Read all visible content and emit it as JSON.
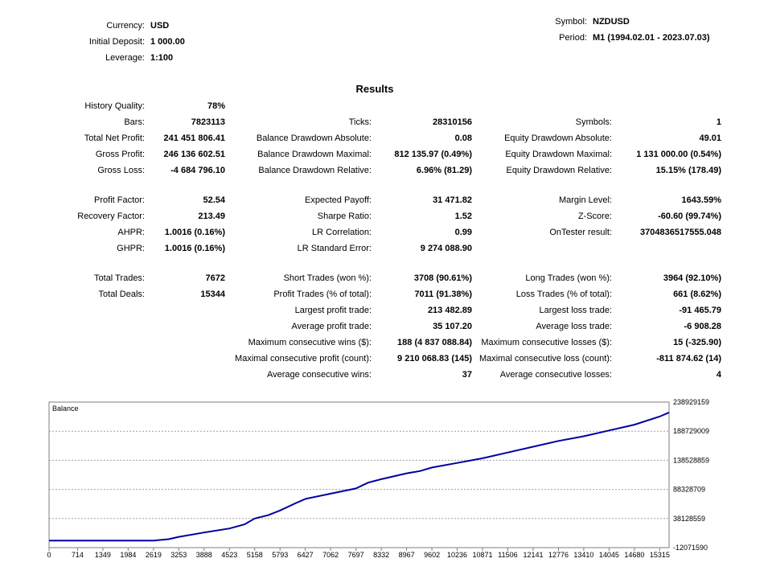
{
  "header": {
    "currency_label": "Currency:",
    "currency": "USD",
    "deposit_label": "Initial Deposit:",
    "deposit": "1 000.00",
    "leverage_label": "Leverage:",
    "leverage": "1:100",
    "symbol_label": "Symbol:",
    "symbol": "NZDUSD",
    "period_label": "Period:",
    "period": "M1 (1994.02.01 - 2023.07.03)"
  },
  "results_title": "Results",
  "col1": [
    {
      "label": "History Quality:",
      "value": "78%"
    },
    {
      "label": "Bars:",
      "value": "7823113"
    },
    {
      "label": "Total Net Profit:",
      "value": "241 451 806.41"
    },
    {
      "label": "Gross Profit:",
      "value": "246 136 602.51"
    },
    {
      "label": "Gross Loss:",
      "value": "-4 684 796.10"
    },
    {
      "label": "Profit Factor:",
      "value": "52.54"
    },
    {
      "label": "Recovery Factor:",
      "value": "213.49"
    },
    {
      "label": "AHPR:",
      "value": "1.0016 (0.16%)"
    },
    {
      "label": "GHPR:",
      "value": "1.0016 (0.16%)"
    },
    {
      "label": "Total Trades:",
      "value": "7672"
    },
    {
      "label": "Total Deals:",
      "value": "15344"
    }
  ],
  "col2": [
    {
      "label": "Ticks:",
      "value": "28310156"
    },
    {
      "label": "Balance Drawdown Absolute:",
      "value": "0.08"
    },
    {
      "label": "Balance Drawdown Maximal:",
      "value": "812 135.97 (0.49%)"
    },
    {
      "label": "Balance Drawdown Relative:",
      "value": "6.96% (81.29)"
    },
    {
      "label": "Expected Payoff:",
      "value": "31 471.82"
    },
    {
      "label": "Sharpe Ratio:",
      "value": "1.52"
    },
    {
      "label": "LR Correlation:",
      "value": "0.99"
    },
    {
      "label": "LR Standard Error:",
      "value": "9 274 088.90"
    },
    {
      "label": "Short Trades (won %):",
      "value": "3708 (90.61%)"
    },
    {
      "label": "Profit Trades (% of total):",
      "value": "7011 (91.38%)"
    },
    {
      "label": "Largest profit trade:",
      "value": "213 482.89"
    },
    {
      "label": "Average profit trade:",
      "value": "35 107.20"
    },
    {
      "label": "Maximum consecutive wins ($):",
      "value": "188 (4 837 088.84)"
    },
    {
      "label": "Maximal consecutive profit (count):",
      "value": "9 210 068.83 (145)"
    },
    {
      "label": "Average consecutive wins:",
      "value": "37"
    }
  ],
  "col3": [
    {
      "label": "Symbols:",
      "value": "1"
    },
    {
      "label": "Equity Drawdown Absolute:",
      "value": "49.01"
    },
    {
      "label": "Equity Drawdown Maximal:",
      "value": "1 131 000.00 (0.54%)"
    },
    {
      "label": "Equity Drawdown Relative:",
      "value": "15.15% (178.49)"
    },
    {
      "label": "Margin Level:",
      "value": "1643.59%"
    },
    {
      "label": "Z-Score:",
      "value": "-60.60 (99.74%)"
    },
    {
      "label": "OnTester result:",
      "value": "3704836517555.048"
    },
    {
      "label": "Long Trades (won %):",
      "value": "3964 (92.10%)"
    },
    {
      "label": "Loss Trades (% of total):",
      "value": "661 (8.62%)"
    },
    {
      "label": "Largest loss trade:",
      "value": "-91 465.79"
    },
    {
      "label": "Average loss trade:",
      "value": "-6 908.28"
    },
    {
      "label": "Maximum consecutive losses ($):",
      "value": "15 (-325.90)"
    },
    {
      "label": "Maximal consecutive loss (count):",
      "value": "-811 874.62 (14)"
    },
    {
      "label": "Average consecutive losses:",
      "value": "4"
    }
  ],
  "chart_data": {
    "type": "line",
    "title": "Balance",
    "xlabel": "",
    "ylabel": "",
    "x_ticks": [
      "0",
      "714",
      "1349",
      "1984",
      "2619",
      "3253",
      "3888",
      "4523",
      "5158",
      "5793",
      "6427",
      "7062",
      "7697",
      "8332",
      "8967",
      "9602",
      "10236",
      "10871",
      "11506",
      "12141",
      "12776",
      "13410",
      "14045",
      "14680",
      "15315"
    ],
    "y_ticks": [
      "238929159",
      "188729009",
      "138528859",
      "88328709",
      "38128559",
      "-12071590"
    ],
    "xlim": [
      0,
      15550
    ],
    "ylim": [
      -12071590,
      238929159
    ],
    "series": [
      {
        "color": "#0000a0",
        "x": [
          0,
          1000,
          2000,
          2300,
          2619,
          3000,
          3253,
          3888,
          4523,
          4900,
          5158,
          5500,
          5793,
          6200,
          6427,
          7062,
          7697,
          8000,
          8332,
          8967,
          9300,
          9602,
          10236,
          10871,
          11506,
          12141,
          12776,
          13410,
          14045,
          14680,
          15315,
          15550
        ],
        "y": [
          1000,
          1000,
          1000,
          1000,
          1000,
          2500000,
          6500000,
          14000000,
          21000000,
          28000000,
          38128559,
          44000000,
          52000000,
          65000000,
          72000000,
          81000000,
          90000000,
          100000000,
          106000000,
          116000000,
          120000000,
          126000000,
          134000000,
          142000000,
          152000000,
          162000000,
          172000000,
          180000000,
          190000000,
          200000000,
          214000000,
          221000000
        ]
      }
    ],
    "grid": true,
    "legend": "none"
  }
}
